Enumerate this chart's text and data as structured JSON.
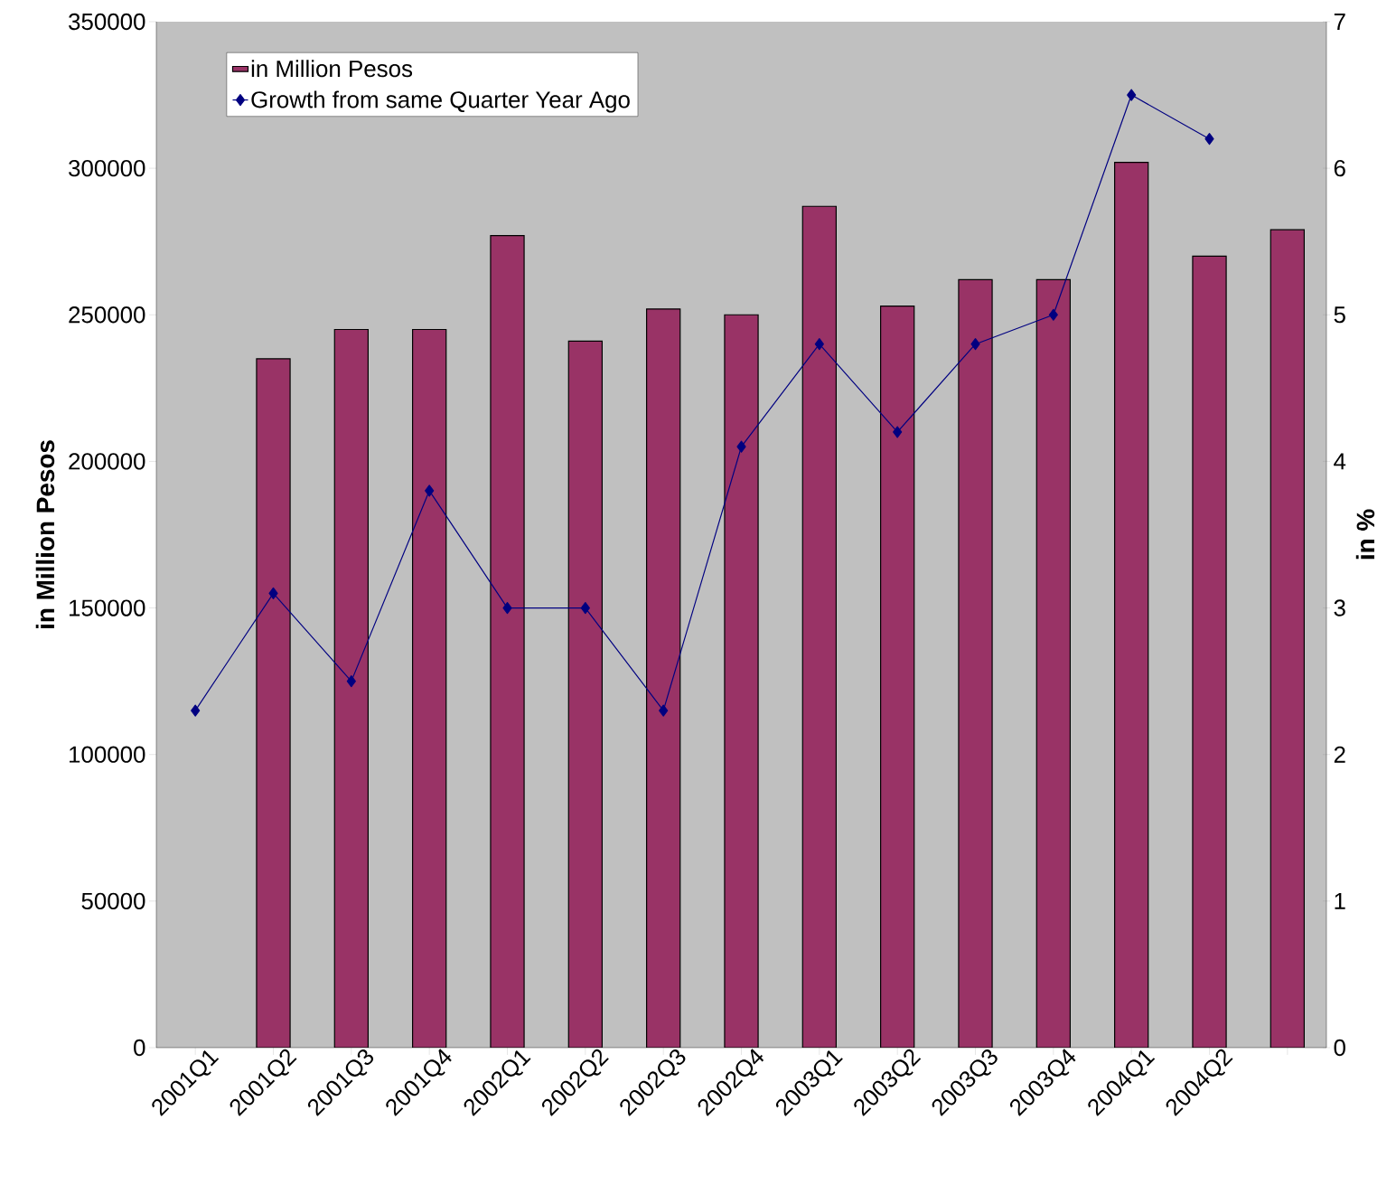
{
  "chart_data": {
    "type": "bar",
    "ylabel": "in Million Pesos",
    "y2label": "in %",
    "categories": [
      "2001Q1",
      "2001Q2",
      "2001Q3",
      "2001Q4",
      "2002Q1",
      "2002Q2",
      "2002Q3",
      "2002Q4",
      "2003Q1",
      "2003Q2",
      "2003Q3",
      "2003Q4",
      "2004Q1",
      "2004Q2",
      null
    ],
    "series": [
      {
        "name": "in Million Pesos",
        "color": "#993366",
        "values": [
          null,
          235000,
          245000,
          245000,
          277000,
          241000,
          252000,
          250000,
          287000,
          253000,
          262000,
          262000,
          302000,
          270000,
          279000
        ]
      },
      {
        "name": "Growth from same Quarter Year Ago",
        "type": "line",
        "axis": "y2",
        "color": "#000080",
        "values": [
          2.3,
          3.1,
          2.5,
          3.8,
          3.0,
          3.0,
          2.3,
          4.1,
          4.8,
          4.2,
          4.8,
          5.0,
          6.5,
          6.2,
          null
        ]
      }
    ],
    "ylim": [
      0,
      350000
    ],
    "yticks": [
      0,
      50000,
      100000,
      150000,
      200000,
      250000,
      300000,
      350000
    ],
    "y2lim": [
      0,
      7
    ],
    "y2ticks": [
      0,
      1,
      2,
      3,
      4,
      5,
      6,
      7
    ],
    "marker": "diamond",
    "grid": false,
    "legend": "top left"
  }
}
